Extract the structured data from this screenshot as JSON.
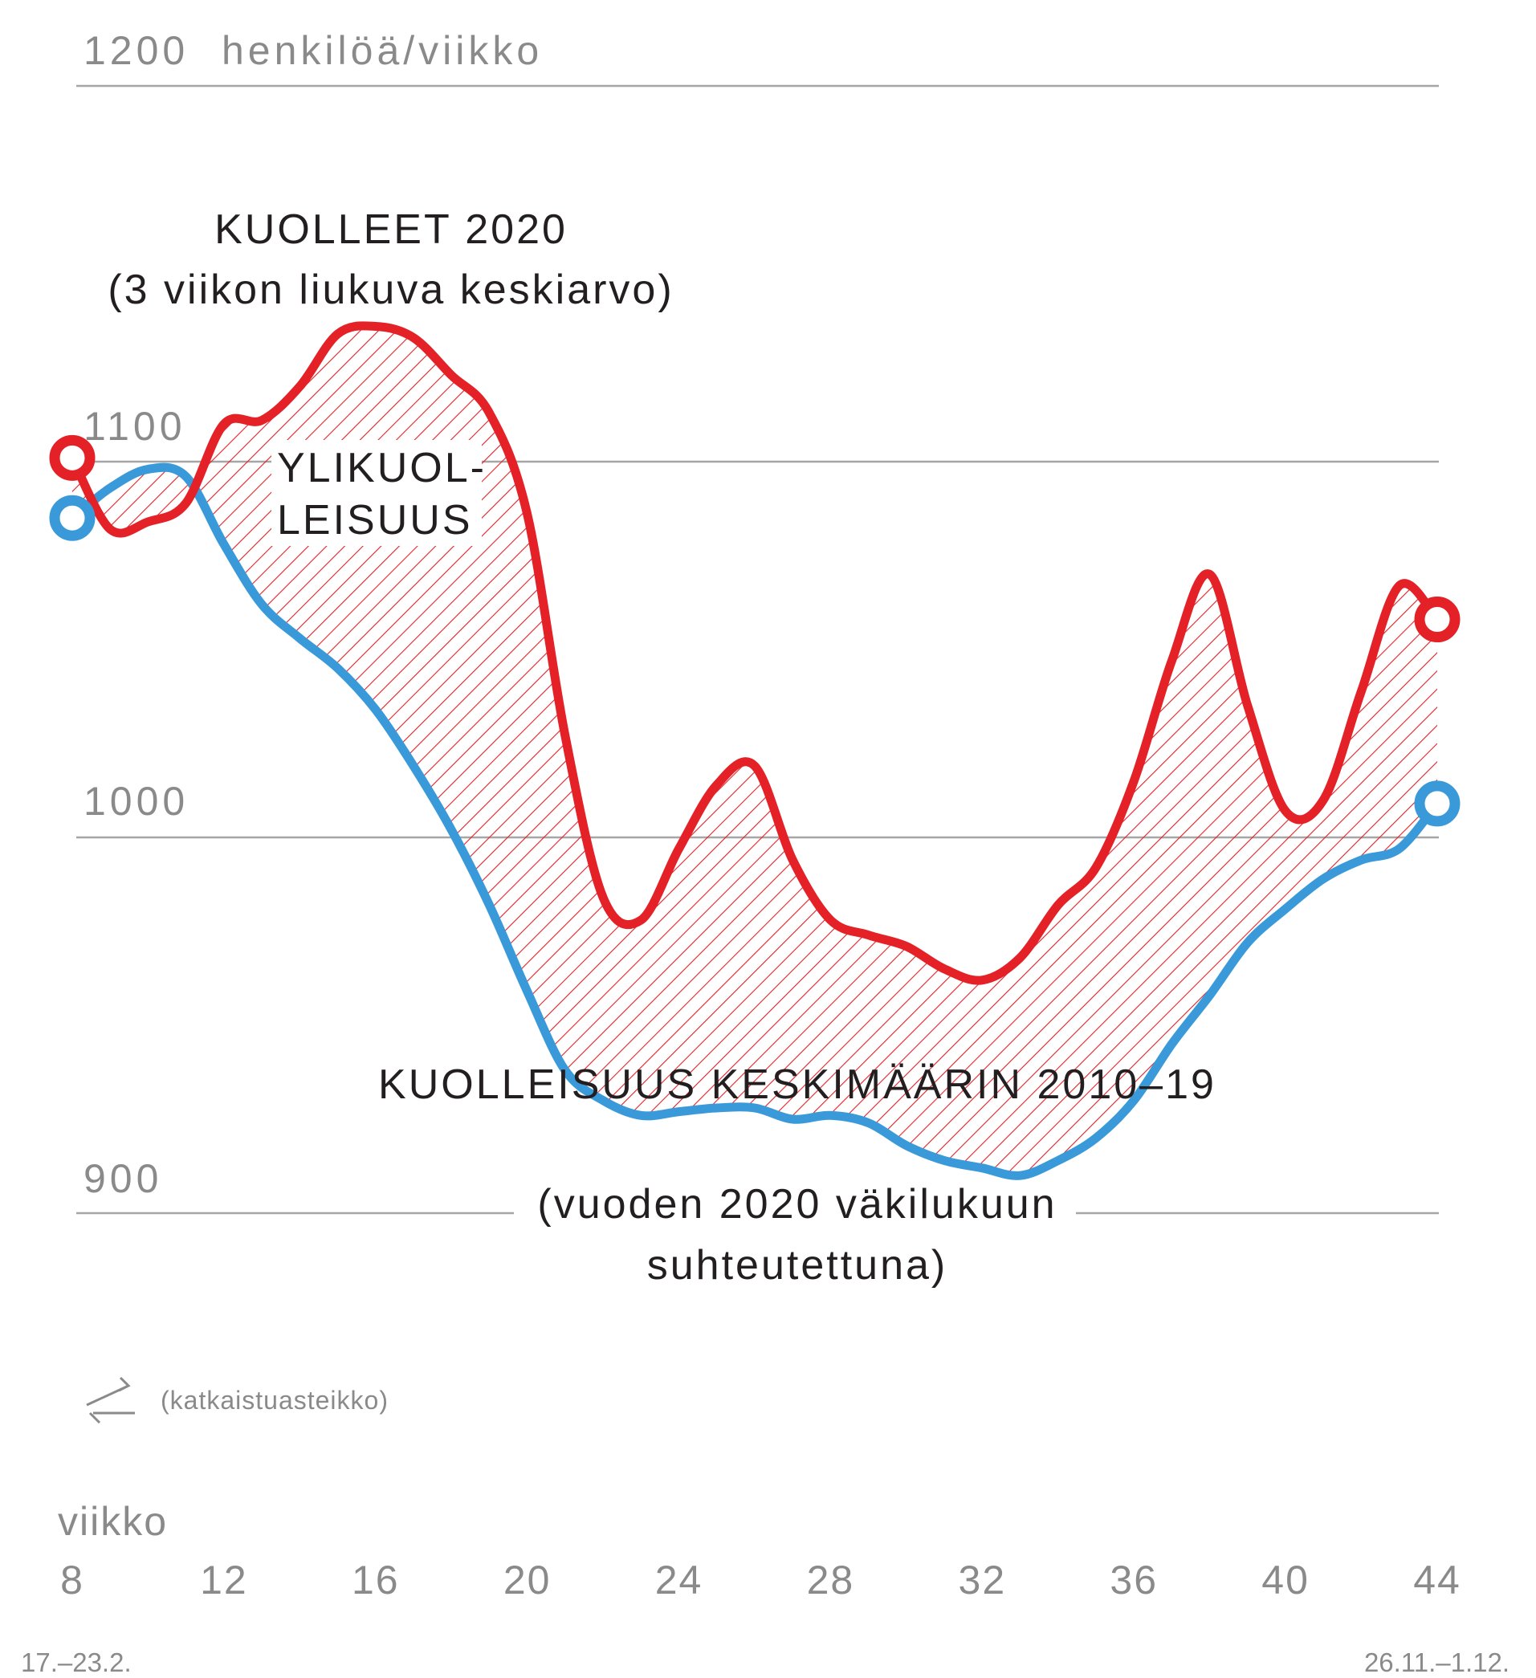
{
  "chart_data": {
    "type": "line",
    "unit_label": "henkilöä/viikko",
    "y_ticks": [
      900,
      1000,
      1100,
      1200
    ],
    "ylim": [
      900,
      1200
    ],
    "x_axis_label": "viikko",
    "x_ticks": [
      8,
      12,
      16,
      20,
      24,
      28,
      32,
      36,
      40,
      44
    ],
    "x_start_label": "17.–23.2.",
    "x_end_label": "26.11.–1.12.",
    "xlim": [
      8,
      44
    ],
    "grid": true,
    "broken_axis_note": "(katkaistuasteikko)",
    "series": [
      {
        "name": "KUOLLEET 2020",
        "name_sub": "(3 viikon liukuva keskiarvo)",
        "color": "#e32127",
        "x": [
          8,
          9,
          10,
          11,
          12,
          13,
          14,
          15,
          16,
          17,
          18,
          19,
          20,
          21,
          22,
          23,
          24,
          25,
          26,
          27,
          28,
          29,
          30,
          31,
          32,
          33,
          34,
          35,
          36,
          37,
          38,
          39,
          40,
          41,
          42,
          43,
          44
        ],
        "values": [
          1101,
          1082,
          1084,
          1089,
          1110,
          1111,
          1120,
          1134,
          1136,
          1133,
          1123,
          1113,
          1086,
          1027,
          984,
          978,
          997,
          1014,
          1019,
          994,
          978,
          974,
          971,
          965,
          962,
          968,
          982,
          992,
          1015,
          1047,
          1070,
          1035,
          1007,
          1010,
          1039,
          1067,
          1058
        ]
      },
      {
        "name": "KUOLLEISUUS KESKIMÄÄRIN 2010–19",
        "name_sub_1": "(vuoden 2020 väkilukuun",
        "name_sub_2": "suhteutettuna)",
        "color": "#3a9ad9",
        "x": [
          8,
          9,
          10,
          11,
          12,
          13,
          14,
          15,
          16,
          17,
          18,
          19,
          20,
          21,
          22,
          23,
          24,
          25,
          26,
          27,
          28,
          29,
          30,
          31,
          32,
          33,
          34,
          35,
          36,
          37,
          38,
          39,
          40,
          41,
          42,
          43,
          44
        ],
        "values": [
          1085,
          1093,
          1098,
          1096,
          1078,
          1062,
          1053,
          1045,
          1034,
          1019,
          1002,
          982,
          959,
          938,
          930,
          926,
          927,
          928,
          928,
          925,
          926,
          924,
          918,
          914,
          912,
          910,
          914,
          920,
          930,
          945,
          958,
          972,
          981,
          989,
          994,
          997,
          1009
        ]
      }
    ],
    "area_label_1": "YLIKUOL-",
    "area_label_2": "LEISUUS",
    "colors": {
      "excess_area": "#e32127",
      "grid": "#a6a6a6",
      "axis_text": "#8a8a8a"
    }
  }
}
